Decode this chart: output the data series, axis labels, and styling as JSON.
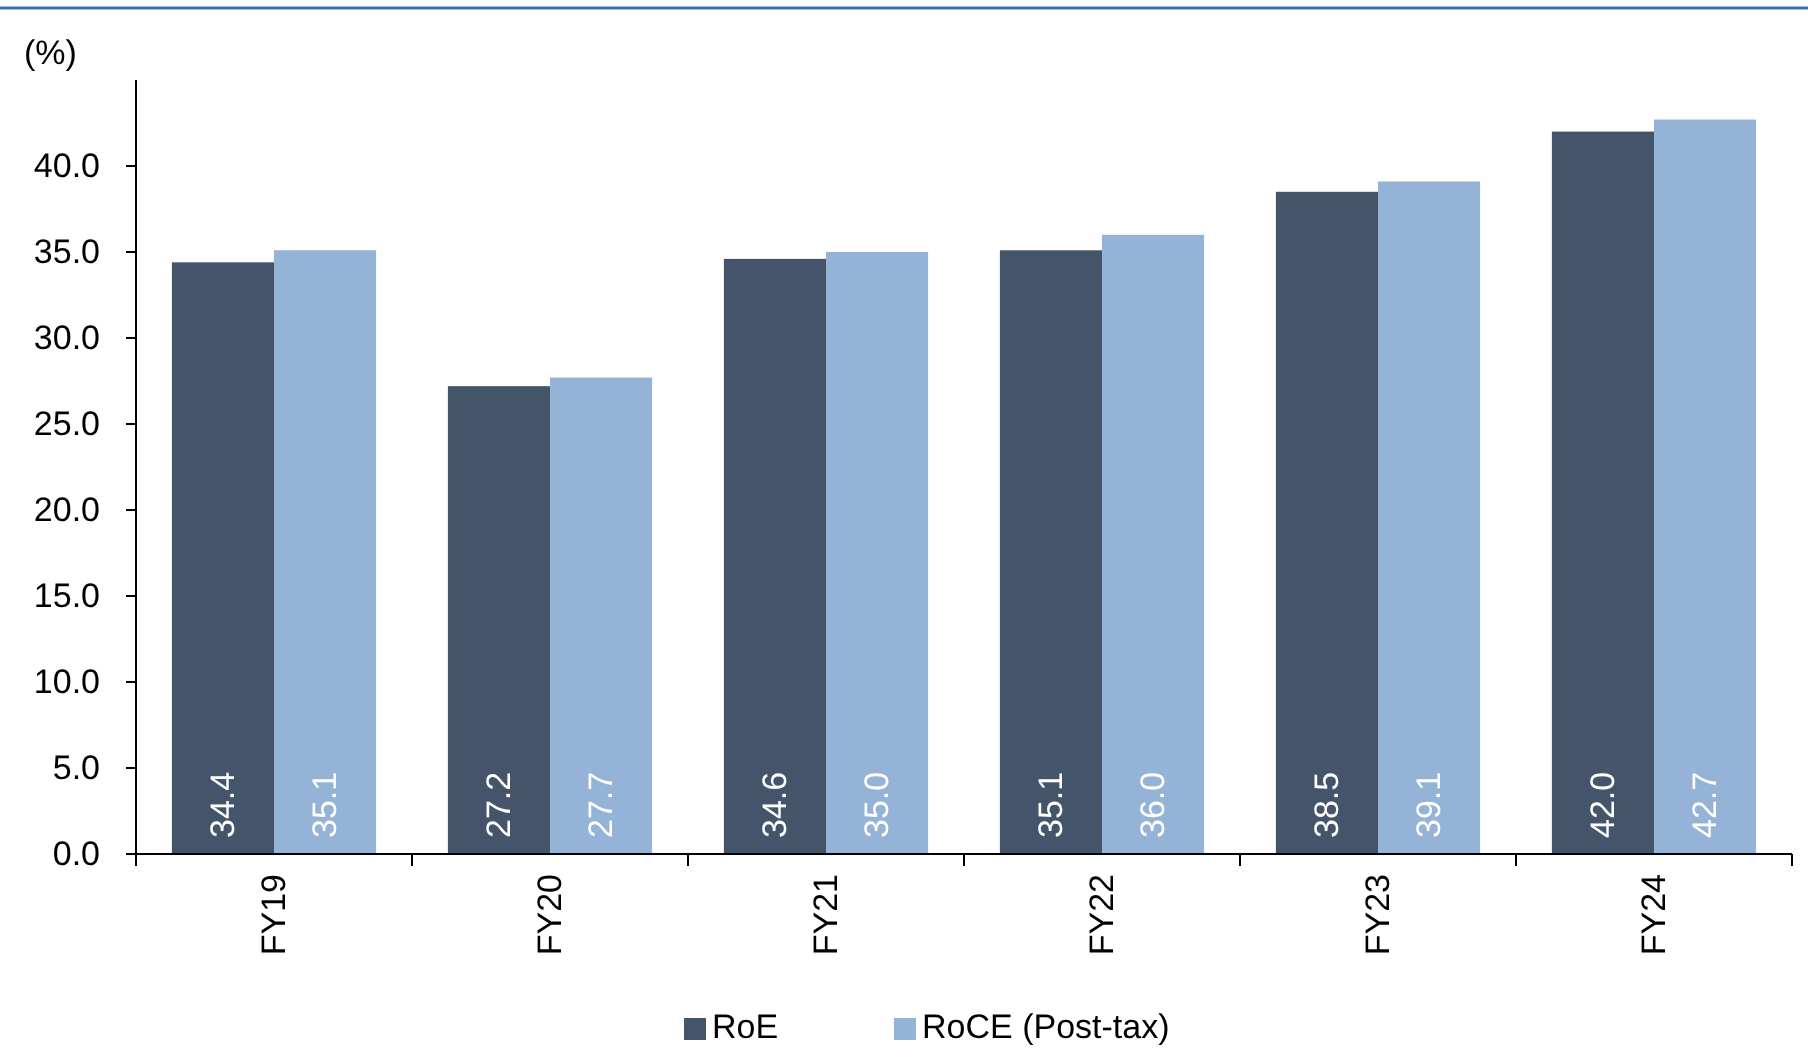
{
  "chart_data": {
    "type": "bar",
    "ylabel": "(%)",
    "categories": [
      "FY19",
      "FY20",
      "FY21",
      "FY22",
      "FY23",
      "FY24"
    ],
    "series": [
      {
        "name": "RoE",
        "color": "#44546a",
        "values": [
          34.4,
          27.2,
          34.6,
          35.1,
          38.5,
          42.0
        ],
        "value_labels": [
          "34.4",
          "27.2",
          "34.6",
          "35.1",
          "38.5",
          "42.0"
        ]
      },
      {
        "name": "RoCE (Post-tax)",
        "color": "#95b3d7",
        "values": [
          35.1,
          27.7,
          35.0,
          36.0,
          39.1,
          42.7
        ],
        "value_labels": [
          "35.1",
          "27.7",
          "35.0",
          "36.0",
          "39.1",
          "42.7"
        ]
      }
    ],
    "ylim": [
      0,
      45
    ],
    "yticks": [
      {
        "value": 0,
        "label": "0.0"
      },
      {
        "value": 5,
        "label": "5.0"
      },
      {
        "value": 10,
        "label": "10.0"
      },
      {
        "value": 15,
        "label": "15.0"
      },
      {
        "value": 20,
        "label": "20.0"
      },
      {
        "value": 25,
        "label": "25.0"
      },
      {
        "value": 30,
        "label": "30.0"
      },
      {
        "value": 35,
        "label": "35.0"
      },
      {
        "value": 40,
        "label": "40.0"
      }
    ],
    "legend": "bottom",
    "grid": false
  }
}
